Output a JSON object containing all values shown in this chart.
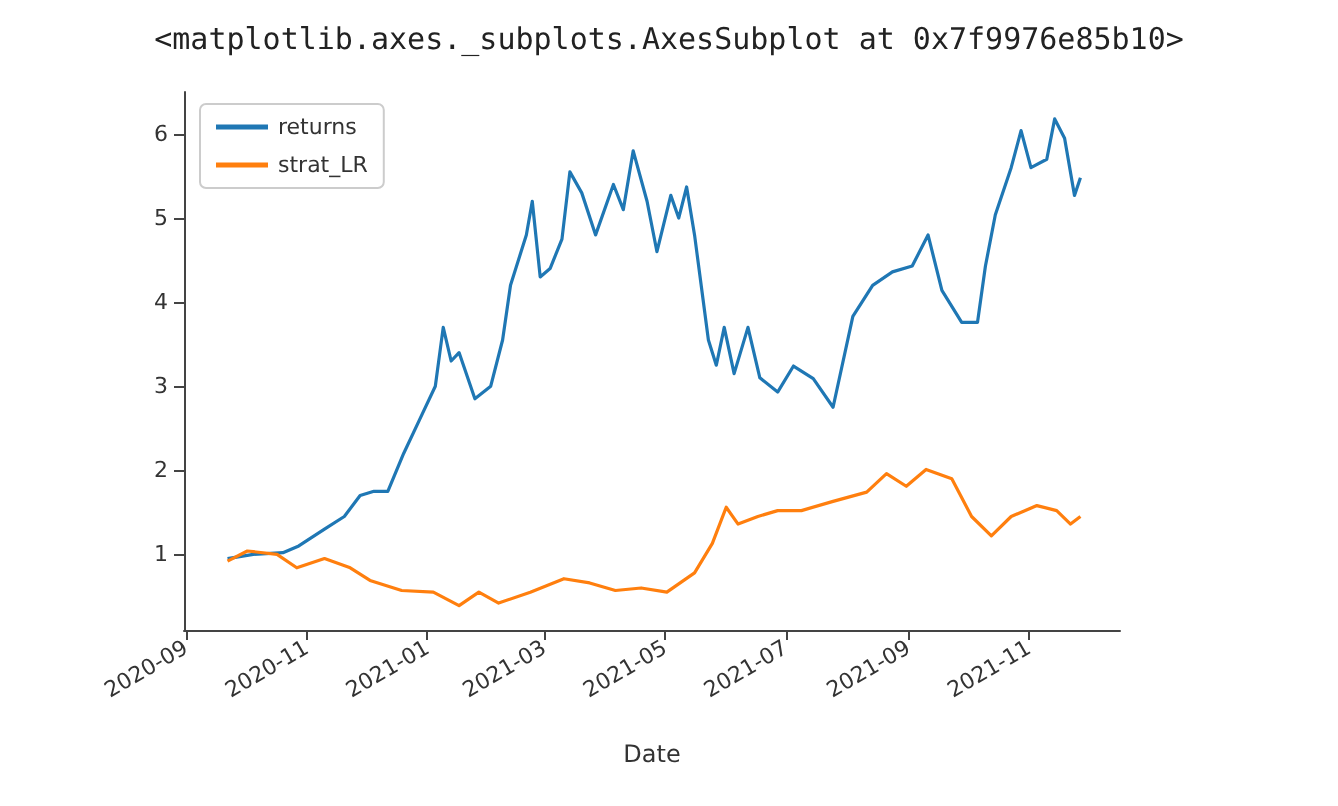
{
  "chart_data": {
    "type": "line",
    "annotations": [
      "<matplotlib.axes._subplots.AxesSubplot at 0x7f9976e85b10>"
    ],
    "xlabel": "Date",
    "xlim": [
      "2020-08-31",
      "2021-12-17"
    ],
    "xticks": [
      "2020-09",
      "2020-11",
      "2021-01",
      "2021-03",
      "2021-05",
      "2021-07",
      "2021-09",
      "2021-11"
    ],
    "ylim": [
      0.1,
      6.5
    ],
    "yticks": [
      1,
      2,
      3,
      4,
      5,
      6
    ],
    "grid": false,
    "legend": "top left",
    "series": [
      {
        "name": "returns",
        "color": "#1f77b4",
        "x": [
          "2020-09-22",
          "2020-10-05",
          "2020-10-20",
          "2020-10-28",
          "2020-11-10",
          "2020-11-20",
          "2020-11-28",
          "2020-12-05",
          "2020-12-12",
          "2020-12-20",
          "2020-12-28",
          "2021-01-05",
          "2021-01-09",
          "2021-01-13",
          "2021-01-17",
          "2021-01-25",
          "2021-02-02",
          "2021-02-08",
          "2021-02-12",
          "2021-02-20",
          "2021-02-23",
          "2021-02-27",
          "2021-03-04",
          "2021-03-10",
          "2021-03-14",
          "2021-03-20",
          "2021-03-27",
          "2021-04-05",
          "2021-04-10",
          "2021-04-15",
          "2021-04-22",
          "2021-04-27",
          "2021-05-04",
          "2021-05-08",
          "2021-05-12",
          "2021-05-16",
          "2021-05-23",
          "2021-05-27",
          "2021-05-31",
          "2021-06-05",
          "2021-06-12",
          "2021-06-18",
          "2021-06-27",
          "2021-07-05",
          "2021-07-15",
          "2021-07-25",
          "2021-08-04",
          "2021-08-14",
          "2021-08-24",
          "2021-09-03",
          "2021-09-11",
          "2021-09-18",
          "2021-09-28",
          "2021-10-06",
          "2021-10-10",
          "2021-10-15",
          "2021-10-23",
          "2021-10-28",
          "2021-11-02",
          "2021-11-10",
          "2021-11-14",
          "2021-11-19",
          "2021-11-24",
          "2021-11-27"
        ],
        "values": [
          0.95,
          1.0,
          1.02,
          1.1,
          1.3,
          1.45,
          1.7,
          1.75,
          1.75,
          2.2,
          2.6,
          3.0,
          3.7,
          3.3,
          3.4,
          2.85,
          3.0,
          3.55,
          4.2,
          4.8,
          5.2,
          4.3,
          4.4,
          4.75,
          5.55,
          5.3,
          4.8,
          5.4,
          5.1,
          5.8,
          5.2,
          4.6,
          5.27,
          5.0,
          5.37,
          4.8,
          3.55,
          3.25,
          3.7,
          3.15,
          3.7,
          3.1,
          2.93,
          3.24,
          3.09,
          2.75,
          3.83,
          4.2,
          4.36,
          4.43,
          4.8,
          4.14,
          3.76,
          3.76,
          4.43,
          5.04,
          5.6,
          6.04,
          5.6,
          5.7,
          6.18,
          5.95,
          5.27,
          5.48
        ]
      },
      {
        "name": "strat_LR",
        "color": "#ff7f0e",
        "x": [
          "2020-09-22",
          "2020-10-02",
          "2020-10-17",
          "2020-10-27",
          "2020-11-10",
          "2020-11-23",
          "2020-12-03",
          "2020-12-19",
          "2021-01-04",
          "2021-01-17",
          "2021-01-27",
          "2021-02-06",
          "2021-02-22",
          "2021-03-11",
          "2021-03-24",
          "2021-04-06",
          "2021-04-19",
          "2021-05-02",
          "2021-05-16",
          "2021-05-25",
          "2021-06-01",
          "2021-06-07",
          "2021-06-17",
          "2021-06-27",
          "2021-07-09",
          "2021-07-25",
          "2021-08-11",
          "2021-08-21",
          "2021-08-31",
          "2021-09-10",
          "2021-09-23",
          "2021-10-03",
          "2021-10-13",
          "2021-10-23",
          "2021-11-05",
          "2021-11-15",
          "2021-11-22",
          "2021-11-27"
        ],
        "values": [
          0.92,
          1.04,
          1.0,
          0.84,
          0.95,
          0.84,
          0.69,
          0.57,
          0.55,
          0.39,
          0.55,
          0.42,
          0.55,
          0.71,
          0.66,
          0.57,
          0.6,
          0.55,
          0.78,
          1.13,
          1.56,
          1.36,
          1.45,
          1.52,
          1.52,
          1.63,
          1.74,
          1.96,
          1.81,
          2.01,
          1.9,
          1.45,
          1.22,
          1.45,
          1.58,
          1.52,
          1.36,
          1.45
        ]
      }
    ]
  }
}
